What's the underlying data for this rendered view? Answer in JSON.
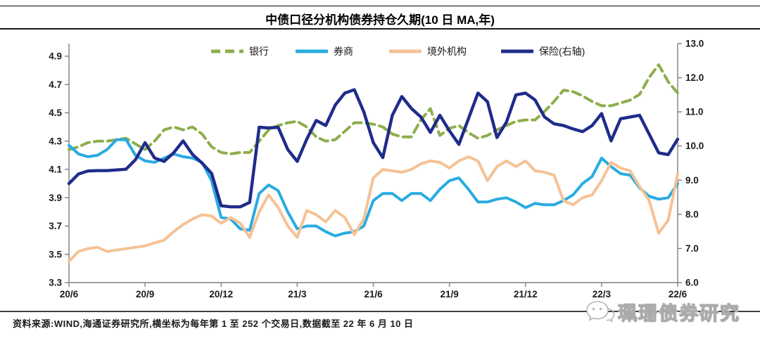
{
  "title": "中债口径分机构债券持仓久期(10 日 MA,年)",
  "source_note": "资料来源:WIND,海通证券研究所,横坐标为每年第 1 至 252 个交易日,数据截至 22 年 6 月 10 日",
  "watermark": {
    "text": "珮珊债券研究"
  },
  "chart_data": {
    "type": "line",
    "title": "中债口径分机构债券持仓久期(10 日 MA,年)",
    "x_axis_note": "每年第1至252个交易日",
    "x_tick_labels": [
      "20/6",
      "20/9",
      "20/12",
      "21/3",
      "21/6",
      "21/9",
      "21/12",
      "22/3",
      "22/6"
    ],
    "left_axis": {
      "min": 3.3,
      "max": 4.9,
      "step": 0.2,
      "ticks": [
        3.3,
        3.5,
        3.7,
        3.9,
        4.1,
        4.3,
        4.5,
        4.7,
        4.9
      ],
      "decimals": 1
    },
    "right_axis": {
      "min": 6.0,
      "max": 13.0,
      "step": 1.0,
      "ticks": [
        6.0,
        7.0,
        8.0,
        9.0,
        10.0,
        11.0,
        12.0,
        13.0
      ],
      "decimals": 1
    },
    "grid": false,
    "legend_position": "top",
    "series": [
      {
        "id": "bank",
        "name": "银行",
        "axis": "left",
        "color": "#8DAE4C",
        "style": "dashed",
        "width": 4,
        "values": [
          4.24,
          4.26,
          4.29,
          4.3,
          4.3,
          4.31,
          4.32,
          4.28,
          4.24,
          4.3,
          4.38,
          4.4,
          4.38,
          4.4,
          4.35,
          4.26,
          4.22,
          4.21,
          4.22,
          4.22,
          4.3,
          4.38,
          4.41,
          4.43,
          4.44,
          4.4,
          4.33,
          4.3,
          4.31,
          4.37,
          4.43,
          4.43,
          4.42,
          4.4,
          4.35,
          4.33,
          4.33,
          4.45,
          4.53,
          4.34,
          4.39,
          4.41,
          4.36,
          4.32,
          4.34,
          4.38,
          4.41,
          4.44,
          4.45,
          4.45,
          4.51,
          4.58,
          4.66,
          4.65,
          4.62,
          4.58,
          4.55,
          4.55,
          4.57,
          4.59,
          4.63,
          4.75,
          4.84,
          4.72,
          4.64
        ]
      },
      {
        "id": "broker",
        "name": "券商",
        "axis": "left",
        "color": "#29ABE2",
        "style": "solid",
        "width": 4,
        "values": [
          4.27,
          4.21,
          4.19,
          4.2,
          4.24,
          4.31,
          4.31,
          4.2,
          4.16,
          4.15,
          4.18,
          4.21,
          4.19,
          4.18,
          4.15,
          4.02,
          3.76,
          3.75,
          3.68,
          3.67,
          3.93,
          3.99,
          3.95,
          3.8,
          3.68,
          3.7,
          3.7,
          3.66,
          3.63,
          3.65,
          3.66,
          3.7,
          3.88,
          3.93,
          3.93,
          3.88,
          3.93,
          3.93,
          3.88,
          3.96,
          4.02,
          4.04,
          3.96,
          3.87,
          3.87,
          3.89,
          3.9,
          3.87,
          3.83,
          3.86,
          3.85,
          3.85,
          3.88,
          3.92,
          4.0,
          4.05,
          4.18,
          4.12,
          4.07,
          4.06,
          3.97,
          3.91,
          3.89,
          3.9,
          4.0
        ]
      },
      {
        "id": "overseas",
        "name": "境外机构",
        "axis": "left",
        "color": "#F5C296",
        "style": "solid",
        "width": 4,
        "values": [
          3.45,
          3.52,
          3.54,
          3.55,
          3.52,
          3.53,
          3.54,
          3.55,
          3.56,
          3.58,
          3.6,
          3.66,
          3.71,
          3.75,
          3.78,
          3.77,
          3.72,
          3.76,
          3.72,
          3.62,
          3.8,
          3.92,
          3.83,
          3.7,
          3.62,
          3.81,
          3.78,
          3.73,
          3.81,
          3.76,
          3.64,
          3.75,
          4.04,
          4.1,
          4.09,
          4.08,
          4.1,
          4.14,
          4.16,
          4.15,
          4.11,
          4.16,
          4.19,
          4.16,
          4.02,
          4.12,
          4.16,
          4.12,
          4.16,
          4.09,
          4.08,
          4.06,
          3.88,
          3.85,
          3.9,
          3.92,
          4.02,
          4.15,
          4.11,
          4.09,
          3.98,
          3.88,
          3.65,
          3.74,
          4.07
        ]
      },
      {
        "id": "insurance",
        "name": "保险(右轴)",
        "axis": "right",
        "color": "#1F2C8A",
        "style": "solid",
        "width": 4.4,
        "values": [
          8.9,
          9.18,
          9.27,
          9.28,
          9.28,
          9.3,
          9.32,
          9.6,
          10.1,
          9.65,
          9.55,
          9.8,
          10.15,
          9.75,
          9.5,
          9.2,
          8.25,
          8.22,
          8.22,
          8.35,
          10.55,
          10.53,
          10.55,
          9.9,
          9.55,
          10.2,
          10.75,
          10.6,
          11.2,
          11.55,
          11.65,
          11.0,
          10.1,
          9.66,
          10.9,
          11.45,
          11.1,
          10.85,
          10.4,
          10.9,
          10.45,
          10.05,
          10.8,
          11.55,
          11.3,
          10.25,
          10.7,
          11.5,
          11.55,
          11.35,
          10.85,
          10.65,
          10.6,
          10.5,
          10.42,
          10.6,
          10.95,
          10.15,
          10.8,
          10.85,
          10.9,
          10.35,
          9.8,
          9.75,
          10.2
        ]
      }
    ]
  }
}
